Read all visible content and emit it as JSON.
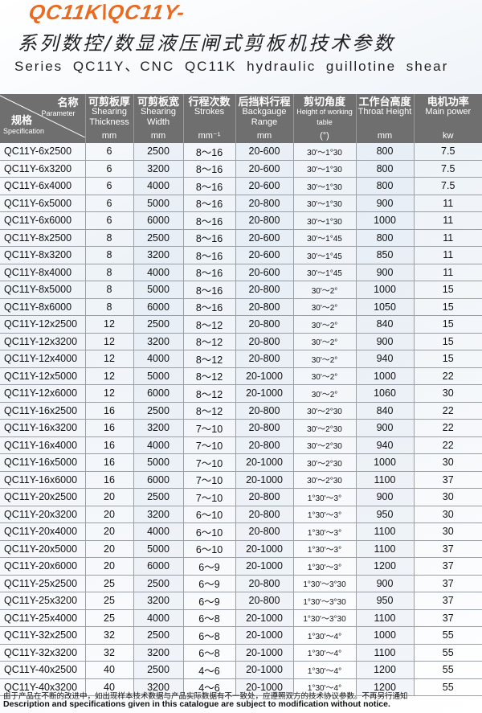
{
  "brand": "QC11K\\QC11Y-",
  "title_cn": "系列数控/数显液压闸式剪板机技术参数",
  "title_en": "Series   QC11Y、CNC  QC11K   hydraulic guillotine shear",
  "header": {
    "param_cn": "名称",
    "param_en": "Parameter",
    "spec_cn": "规格",
    "spec_en": "Specification",
    "columns": [
      {
        "cn": "可剪板厚",
        "en": "Shearing Thickness",
        "unit": "mm"
      },
      {
        "cn": "可剪板宽",
        "en": "Shearing Width",
        "unit": "mm"
      },
      {
        "cn": "行程次数",
        "en": "Strokes",
        "unit": "mm⁻¹"
      },
      {
        "cn": "后挡料行程",
        "en": "Backgauge Range",
        "unit": "mm"
      },
      {
        "cn": "剪切角度",
        "en": "Height of working table",
        "unit": "(°)"
      },
      {
        "cn": "工作台高度",
        "en": "Throat Height",
        "unit": "mm"
      },
      {
        "cn": "电机功率",
        "en": "Main power",
        "unit": "kw"
      }
    ]
  },
  "rows": [
    [
      "QC11Y-6x2500",
      "6",
      "2500",
      "8～16",
      "20-600",
      "30'～1°30",
      "800",
      "7.5"
    ],
    [
      "QC11Y-6x3200",
      "6",
      "3200",
      "8～16",
      "20-600",
      "30'～1°30",
      "800",
      "7.5"
    ],
    [
      "QC11Y-6x4000",
      "6",
      "4000",
      "8～16",
      "20-600",
      "30'～1°30",
      "800",
      "7.5"
    ],
    [
      "QC11Y-6x5000",
      "6",
      "5000",
      "8～16",
      "20-800",
      "30'～1°30",
      "900",
      "11"
    ],
    [
      "QC11Y-6x6000",
      "6",
      "6000",
      "8～16",
      "20-800",
      "30'～1°30",
      "1000",
      "11"
    ],
    [
      "QC11Y-8x2500",
      "8",
      "2500",
      "8～16",
      "20-600",
      "30'～1°45",
      "800",
      "11"
    ],
    [
      "QC11Y-8x3200",
      "8",
      "3200",
      "8～16",
      "20-600",
      "30'～1°45",
      "850",
      "11"
    ],
    [
      "QC11Y-8x4000",
      "8",
      "4000",
      "8～16",
      "20-600",
      "30'～1°45",
      "900",
      "11"
    ],
    [
      "QC11Y-8x5000",
      "8",
      "5000",
      "8～16",
      "20-800",
      "30'～2°",
      "1000",
      "15"
    ],
    [
      "QC11Y-8x6000",
      "8",
      "6000",
      "8～16",
      "20-800",
      "30'～2°",
      "1050",
      "15"
    ],
    [
      "QC11Y-12x2500",
      "12",
      "2500",
      "8～12",
      "20-800",
      "30'～2°",
      "840",
      "15"
    ],
    [
      "QC11Y-12x3200",
      "12",
      "3200",
      "8～12",
      "20-800",
      "30'～2°",
      "900",
      "15"
    ],
    [
      "QC11Y-12x4000",
      "12",
      "4000",
      "8～12",
      "20-800",
      "30'～2°",
      "940",
      "15"
    ],
    [
      "QC11Y-12x5000",
      "12",
      "5000",
      "8～12",
      "20-1000",
      "30'～2°",
      "1000",
      "22"
    ],
    [
      "QC11Y-12x6000",
      "12",
      "6000",
      "8～12",
      "20-1000",
      "30'～2°",
      "1060",
      "30"
    ],
    [
      "QC11Y-16x2500",
      "16",
      "2500",
      "8～12",
      "20-800",
      "30'～2°30",
      "840",
      "22"
    ],
    [
      "QC11Y-16x3200",
      "16",
      "3200",
      "7～10",
      "20-800",
      "30'～2°30",
      "900",
      "22"
    ],
    [
      "QC11Y-16x4000",
      "16",
      "4000",
      "7～10",
      "20-800",
      "30'～2°30",
      "940",
      "22"
    ],
    [
      "QC11Y-16x5000",
      "16",
      "5000",
      "7～10",
      "20-1000",
      "30'～2°30",
      "1000",
      "30"
    ],
    [
      "QC11Y-16x6000",
      "16",
      "6000",
      "7～10",
      "20-1000",
      "30'～2°30",
      "1100",
      "37"
    ],
    [
      "QC11Y-20x2500",
      "20",
      "2500",
      "7～10",
      "20-800",
      "1°30'～3°",
      "900",
      "30"
    ],
    [
      "QC11Y-20x3200",
      "20",
      "3200",
      "6～10",
      "20-800",
      "1°30'～3°",
      "950",
      "30"
    ],
    [
      "QC11Y-20x4000",
      "20",
      "4000",
      "6～10",
      "20-800",
      "1°30'～3°",
      "1100",
      "30"
    ],
    [
      "QC11Y-20x5000",
      "20",
      "5000",
      "6～10",
      "20-1000",
      "1°30'～3°",
      "1100",
      "37"
    ],
    [
      "QC11Y-20x6000",
      "20",
      "6000",
      "6～9",
      "20-1000",
      "1°30'～3°",
      "1200",
      "37"
    ],
    [
      "QC11Y-25x2500",
      "25",
      "2500",
      "6～9",
      "20-800",
      "1°30'～3°30",
      "900",
      "37"
    ],
    [
      "QC11Y-25x3200",
      "25",
      "3200",
      "6～9",
      "20-800",
      "1°30'～3°30",
      "950",
      "37"
    ],
    [
      "QC11Y-25x4000",
      "25",
      "4000",
      "6～8",
      "20-1000",
      "1°30'～3°30",
      "1100",
      "37"
    ],
    [
      "QC11Y-32x2500",
      "32",
      "2500",
      "6～8",
      "20-1000",
      "1°30'～4°",
      "1000",
      "55"
    ],
    [
      "QC11Y-32x3200",
      "32",
      "3200",
      "6～8",
      "20-1000",
      "1°30'～4°",
      "1100",
      "55"
    ],
    [
      "QC11Y-40x2500",
      "40",
      "2500",
      "4～6",
      "20-1000",
      "1°30'～4°",
      "1200",
      "55"
    ],
    [
      "QC11Y-40x3200",
      "40",
      "3200",
      "4～6",
      "20-1000",
      "1°30'～4°",
      "1200",
      "55"
    ]
  ],
  "note_cn": "由于产品在不断的改进中，如出现样本技术数据与产品实际数据有不一致处，应遵照双方的技术协议参数。不再另行通知",
  "note_en": "Description and specifications given in this catalogue are subject to modification without notice.",
  "colors": {
    "brand": "#ea6a1f",
    "header_bg": "#6f6f6f"
  }
}
